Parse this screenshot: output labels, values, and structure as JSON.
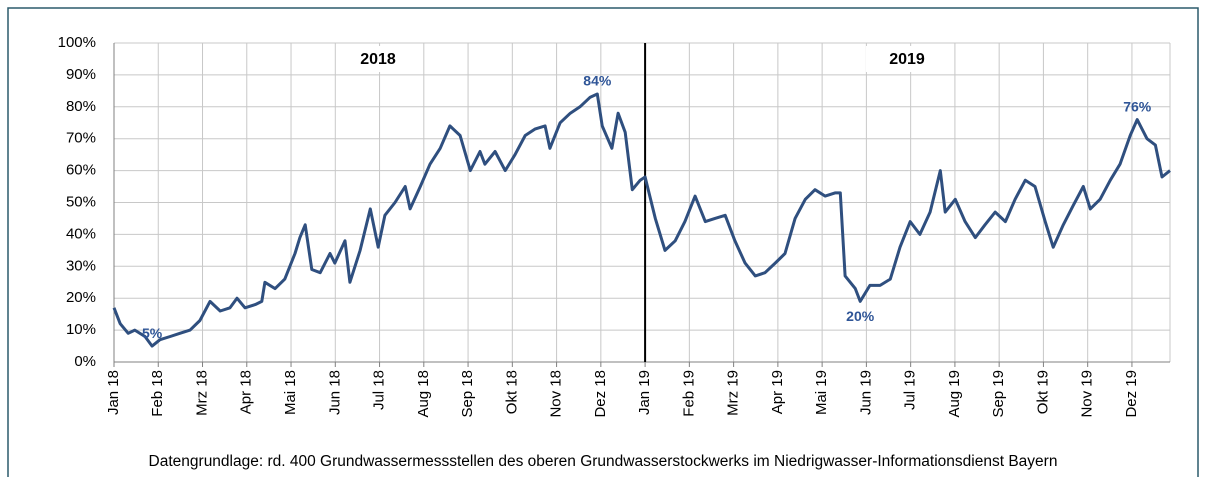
{
  "chart_data": {
    "type": "line",
    "categories": [
      "Jan 18",
      "Feb 18",
      "Mrz 18",
      "Apr 18",
      "Mai 18",
      "Jun 18",
      "Jul 18",
      "Aug 18",
      "Sep 18",
      "Okt 18",
      "Nov 18",
      "Dez 18",
      "Jan 19",
      "Feb 19",
      "Mrz 19",
      "Apr 19",
      "Mai 19",
      "Jun 19",
      "Jul 19",
      "Aug 19",
      "Sep 19",
      "Okt 19",
      "Nov 19",
      "Dez 19"
    ],
    "x": [
      0,
      0.14,
      0.32,
      0.47,
      0.7,
      0.86,
      1.04,
      1.27,
      1.49,
      1.72,
      1.94,
      2.17,
      2.4,
      2.62,
      2.78,
      2.96,
      3.19,
      3.34,
      3.41,
      3.64,
      3.86,
      4.09,
      4.2,
      4.32,
      4.47,
      4.66,
      4.88,
      4.99,
      5.22,
      5.33,
      5.56,
      5.79,
      5.97,
      6.12,
      6.35,
      6.58,
      6.69,
      6.92,
      7.14,
      7.37,
      7.59,
      7.82,
      8.05,
      8.27,
      8.38,
      8.61,
      8.84,
      9.06,
      9.29,
      9.51,
      9.74,
      9.85,
      10.08,
      10.31,
      10.53,
      10.76,
      10.92,
      11.03,
      11.25,
      11.39,
      11.55,
      11.71,
      11.89,
      12.0,
      12.23,
      12.45,
      12.68,
      12.9,
      13.13,
      13.36,
      13.58,
      13.81,
      14.03,
      14.26,
      14.49,
      14.71,
      14.94,
      15.16,
      15.39,
      15.62,
      15.84,
      16.07,
      16.29,
      16.41,
      16.52,
      16.75,
      16.86,
      17.08,
      17.31,
      17.54,
      17.76,
      17.99,
      18.21,
      18.44,
      18.67,
      18.78,
      19.01,
      19.23,
      19.46,
      19.68,
      19.91,
      20.14,
      20.36,
      20.59,
      20.81,
      21.04,
      21.22,
      21.45,
      21.67,
      21.9,
      22.06,
      22.28,
      22.51,
      22.73,
      22.96,
      23.12,
      23.34,
      23.53,
      23.68,
      23.86
    ],
    "values": [
      17,
      12,
      9,
      10,
      8,
      5,
      7,
      8,
      9,
      10,
      13,
      19,
      16,
      17,
      20,
      17,
      18,
      19,
      25,
      23,
      26,
      34,
      39,
      43,
      29,
      28,
      34,
      31,
      38,
      25,
      35,
      48,
      36,
      46,
      50,
      55,
      48,
      55,
      62,
      67,
      74,
      71,
      60,
      66,
      62,
      66,
      60,
      65,
      71,
      73,
      74,
      67,
      75,
      78,
      80,
      83,
      84,
      74,
      67,
      78,
      72,
      54,
      57,
      58,
      45,
      35,
      38,
      44,
      52,
      44,
      45,
      46,
      38,
      31,
      27,
      28,
      31,
      34,
      45,
      51,
      54,
      52,
      53,
      53,
      27,
      23,
      19,
      24,
      24,
      26,
      36,
      44,
      40,
      47,
      60,
      47,
      51,
      44,
      39,
      43,
      47,
      44,
      51,
      57,
      55,
      44,
      36,
      43,
      49,
      55,
      48,
      51,
      57,
      62,
      71,
      76,
      70,
      68,
      58,
      60
    ],
    "color": "#2f4f7f",
    "xlim": [
      0,
      23.86
    ],
    "ylim": [
      0,
      100
    ],
    "yticks": [
      {
        "value": 0,
        "label": "0%"
      },
      {
        "value": 10,
        "label": "10%"
      },
      {
        "value": 20,
        "label": "20%"
      },
      {
        "value": 30,
        "label": "30%"
      },
      {
        "value": 40,
        "label": "40%"
      },
      {
        "value": 50,
        "label": "50%"
      },
      {
        "value": 60,
        "label": "60%"
      },
      {
        "value": 70,
        "label": "70%"
      },
      {
        "value": 80,
        "label": "80%"
      },
      {
        "value": 90,
        "label": "90%"
      },
      {
        "value": 100,
        "label": "100%"
      }
    ],
    "grid": true,
    "annotations": [
      {
        "text": "5%",
        "x": 0.86,
        "y": 5,
        "position": "above"
      },
      {
        "text": "84%",
        "x": 10.92,
        "y": 84,
        "position": "above"
      },
      {
        "text": "20%",
        "x": 16.86,
        "y": 19,
        "position": "below"
      },
      {
        "text": "76%",
        "x": 23.12,
        "y": 76,
        "position": "above"
      }
    ],
    "year_labels": [
      "2018",
      "2019"
    ],
    "footnote": "Datengrundlage: rd. 400 Grundwassermessstellen des oberen Grundwasserstockwerks im Niedrigwasser-Informationsdienst Bayern"
  }
}
